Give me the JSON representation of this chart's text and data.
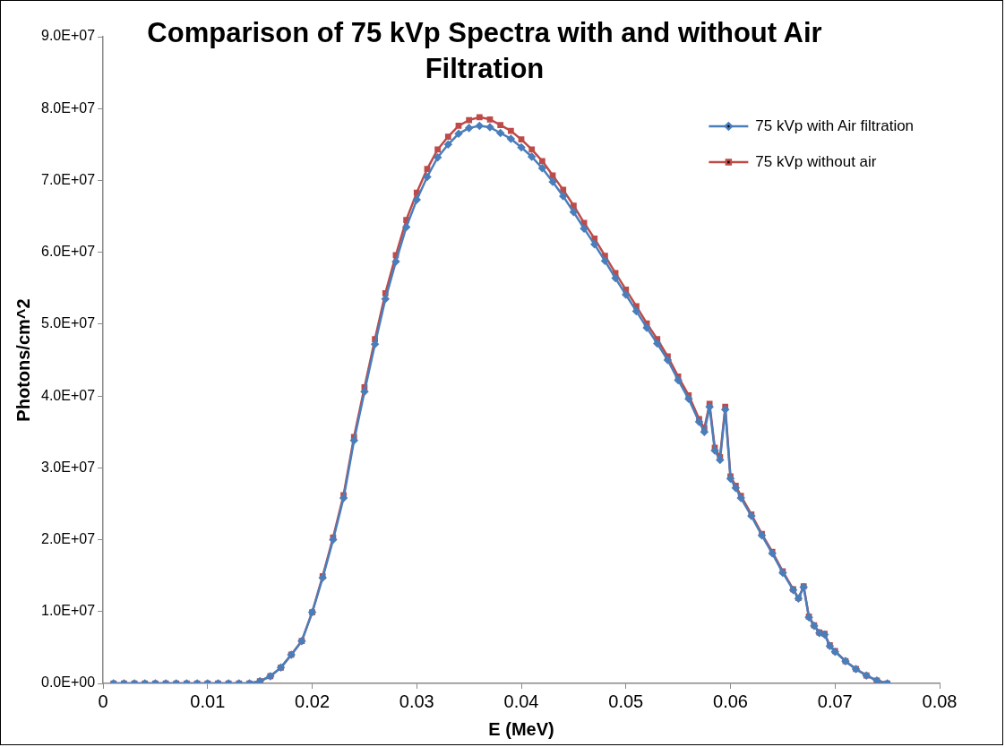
{
  "chart_data": {
    "type": "line",
    "title": "Comparison of 75 kVp Spectra with and without Air Filtration",
    "xlabel": "E (MeV)",
    "ylabel": "Photons/cm^2",
    "x": [
      0.001,
      0.002,
      0.003,
      0.004,
      0.005,
      0.006,
      0.007,
      0.008,
      0.009,
      0.01,
      0.011,
      0.012,
      0.013,
      0.014,
      0.015,
      0.016,
      0.017,
      0.018,
      0.019,
      0.02,
      0.021,
      0.022,
      0.023,
      0.024,
      0.025,
      0.026,
      0.027,
      0.028,
      0.029,
      0.03,
      0.031,
      0.032,
      0.033,
      0.034,
      0.035,
      0.036,
      0.037,
      0.038,
      0.039,
      0.04,
      0.041,
      0.042,
      0.043,
      0.044,
      0.045,
      0.046,
      0.047,
      0.048,
      0.049,
      0.05,
      0.051,
      0.052,
      0.053,
      0.054,
      0.055,
      0.056,
      0.057,
      0.0575,
      0.058,
      0.0585,
      0.059,
      0.0595,
      0.06,
      0.0605,
      0.061,
      0.062,
      0.063,
      0.064,
      0.065,
      0.066,
      0.0665,
      0.067,
      0.0675,
      0.068,
      0.0685,
      0.069,
      0.0695,
      0.07,
      0.071,
      0.072,
      0.073,
      0.074,
      0.075
    ],
    "series": [
      {
        "name": "75 kVp with Air filtration",
        "color": "#4a7ebb",
        "marker": "diamond",
        "values": [
          0,
          0,
          0,
          0,
          0,
          0,
          0,
          0,
          0,
          0,
          0,
          0,
          0,
          0,
          300000.0,
          1000000.0,
          2200000.0,
          4000000.0,
          5900000.0,
          9900000.0,
          14700000.0,
          20000000.0,
          25800000.0,
          33800000.0,
          40600000.0,
          47200000.0,
          53500000.0,
          58700000.0,
          63500000.0,
          67300000.0,
          70500000.0,
          73200000.0,
          75000000.0,
          76500000.0,
          77300000.0,
          77600000.0,
          77400000.0,
          76600000.0,
          75800000.0,
          74600000.0,
          73300000.0,
          71700000.0,
          69800000.0,
          67800000.0,
          65600000.0,
          63300000.0,
          61100000.0,
          58800000.0,
          56400000.0,
          54100000.0,
          51800000.0,
          49500000.0,
          47300000.0,
          45000000.0,
          42200000.0,
          39600000.0,
          36400000.0,
          35000000.0,
          38500000.0,
          32400000.0,
          31100000.0,
          38100000.0,
          28500000.0,
          27200000.0,
          25800000.0,
          23300000.0,
          20600000.0,
          18100000.0,
          15400000.0,
          13000000.0,
          11800000.0,
          13400000.0,
          9200000.0,
          8000000.0,
          7000000.0,
          6800000.0,
          5200000.0,
          4400000.0,
          3100000.0,
          2000000.0,
          1100000.0,
          400000.0,
          0
        ]
      },
      {
        "name": "75 kVp without air",
        "color": "#be4b48",
        "marker": "square",
        "values": [
          0,
          0,
          0,
          0,
          0,
          0,
          0,
          0,
          0,
          0,
          0,
          0,
          0,
          0,
          300000.0,
          1000000.0,
          2200000.0,
          4000000.0,
          5900000.0,
          9900000.0,
          14900000.0,
          20300000.0,
          26200000.0,
          34300000.0,
          41200000.0,
          47900000.0,
          54300000.0,
          59600000.0,
          64500000.0,
          68300000.0,
          71600000.0,
          74300000.0,
          76100000.0,
          77600000.0,
          78400000.0,
          78800000.0,
          78500000.0,
          77700000.0,
          76900000.0,
          75700000.0,
          74300000.0,
          72700000.0,
          70700000.0,
          68700000.0,
          66500000.0,
          64100000.0,
          61900000.0,
          59500000.0,
          57100000.0,
          54800000.0,
          52500000.0,
          50100000.0,
          47900000.0,
          45500000.0,
          42700000.0,
          40100000.0,
          36800000.0,
          35500000.0,
          38900000.0,
          32800000.0,
          31500000.0,
          38500000.0,
          28800000.0,
          27500000.0,
          26100000.0,
          23500000.0,
          20800000.0,
          18300000.0,
          15600000.0,
          13100000.0,
          11900000.0,
          13500000.0,
          9300000.0,
          8100000.0,
          7100000.0,
          6900000.0,
          5300000.0,
          4500000.0,
          3100000.0,
          2000000.0,
          1100000.0,
          400000.0,
          0
        ]
      }
    ],
    "xlim": [
      0,
      0.08
    ],
    "xticks": [
      0,
      0.01,
      0.02,
      0.03,
      0.04,
      0.05,
      0.06,
      0.07,
      0.08
    ],
    "ylim": [
      0,
      90000000.0
    ],
    "yticks": [
      {
        "value": 0,
        "label": "0.0E+00"
      },
      {
        "value": 10000000.0,
        "label": "1.0E+07"
      },
      {
        "value": 20000000.0,
        "label": "2.0E+07"
      },
      {
        "value": 30000000.0,
        "label": "3.0E+07"
      },
      {
        "value": 40000000.0,
        "label": "4.0E+07"
      },
      {
        "value": 50000000.0,
        "label": "5.0E+07"
      },
      {
        "value": 60000000.0,
        "label": "6.0E+07"
      },
      {
        "value": 70000000.0,
        "label": "7.0E+07"
      },
      {
        "value": 80000000.0,
        "label": "8.0E+07"
      },
      {
        "value": 90000000.0,
        "label": "9.0E+07"
      }
    ],
    "grid": false,
    "legend": "top right",
    "line_style": "solid"
  }
}
